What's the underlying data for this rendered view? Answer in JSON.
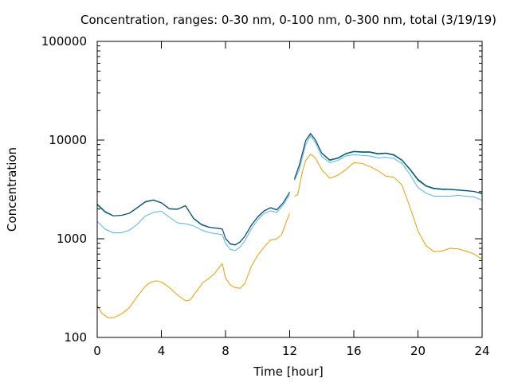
{
  "chart_data": {
    "type": "line",
    "title": "Concentration, ranges: 0-30 nm, 0-100 nm, 0-300 nm, total (3/19/19)",
    "xlabel": "Time [hour]",
    "ylabel": "Concentration",
    "xlim": [
      0,
      24
    ],
    "ylim": [
      100,
      100000
    ],
    "yscale": "log",
    "grid": false,
    "xticks": [
      0,
      4,
      8,
      12,
      16,
      20,
      24
    ],
    "xtick_labels": [
      "0",
      "4",
      "8",
      "12",
      "16",
      "20",
      "24"
    ],
    "yticks": [
      100,
      1000,
      10000,
      100000
    ],
    "ytick_labels": [
      "100",
      "1000",
      "10000",
      "100000"
    ],
    "series": [
      {
        "color": "#e69f00",
        "segments": [
          {
            "x": [
              0,
              0.3,
              0.7,
              1.0,
              1.5,
              2.0,
              2.5,
              3.0,
              3.3,
              3.7,
              4.0,
              4.5,
              5.0,
              5.5,
              5.8,
              6.2,
              6.6,
              7.0,
              7.3,
              7.6,
              7.8,
              8.0,
              8.3,
              8.6,
              8.9,
              9.2,
              9.6,
              10.0,
              10.4,
              10.8,
              11.2,
              11.5,
              11.8,
              12.0
            ],
            "y": [
              210,
              175,
              158,
              158,
              172,
              200,
              260,
              330,
              360,
              375,
              365,
              320,
              270,
              235,
              240,
              295,
              360,
              400,
              440,
              510,
              560,
              400,
              340,
              320,
              315,
              350,
              520,
              680,
              820,
              970,
              1000,
              1100,
              1500,
              1800
            ]
          },
          {
            "x": [
              12.3,
              12.5,
              12.8,
              13.0,
              13.3,
              13.6,
              14.0,
              14.5,
              15.0,
              15.5,
              16.0,
              16.5,
              17.0,
              17.5,
              18.0,
              18.5,
              19.0,
              19.5,
              20.0,
              20.5,
              21.0,
              21.5,
              22.0,
              22.5,
              23.0,
              23.5,
              24.0
            ],
            "y": [
              2700,
              2800,
              4800,
              6200,
              7200,
              6600,
              5000,
              4100,
              4400,
              5000,
              5900,
              5800,
              5400,
              4900,
              4300,
              4200,
              3500,
              2100,
              1200,
              850,
              740,
              750,
              800,
              790,
              750,
              700,
              620
            ]
          }
        ]
      },
      {
        "color": "#56b4e9",
        "segments": [
          {
            "x": [
              0,
              0.5,
              1.0,
              1.5,
              2.0,
              2.5,
              3.0,
              3.5,
              4.0,
              4.5,
              5.0,
              5.5,
              6.0,
              6.5,
              7.0,
              7.5,
              7.8,
              8.0,
              8.3,
              8.6,
              8.9,
              9.2,
              9.6,
              10.0,
              10.4,
              10.8,
              11.2,
              11.6,
              12.0
            ],
            "y": [
              1500,
              1250,
              1150,
              1150,
              1220,
              1400,
              1700,
              1850,
              1900,
              1650,
              1450,
              1420,
              1350,
              1230,
              1150,
              1120,
              1100,
              900,
              780,
              760,
              820,
              950,
              1250,
              1550,
              1800,
              1920,
              1850,
              2200,
              2800
            ]
          },
          {
            "x": [
              12.3,
              12.6,
              13.0,
              13.3,
              13.6,
              14.0,
              14.5,
              15.0,
              15.5,
              16.0,
              16.5,
              17.0,
              17.5,
              18.0,
              18.5,
              19.0,
              19.5,
              20.0,
              20.5,
              21.0,
              21.5,
              22.0,
              22.5,
              23.0,
              23.5,
              24.0
            ],
            "y": [
              3900,
              5000,
              9000,
              11000,
              9500,
              6800,
              5900,
              6200,
              6900,
              7100,
              7000,
              6900,
              6600,
              6700,
              6500,
              5800,
              4500,
              3300,
              2900,
              2700,
              2700,
              2700,
              2750,
              2700,
              2650,
              2450
            ]
          }
        ]
      },
      {
        "color": "#009e73",
        "segments": [
          {
            "x": [
              0,
              0.5,
              1.0,
              1.5,
              2.0,
              2.5,
              3.0,
              3.5,
              4.0,
              4.5,
              5.0,
              5.5,
              6.0,
              6.5,
              7.0,
              7.5,
              7.8,
              8.0,
              8.3,
              8.6,
              8.9,
              9.2,
              9.6,
              10.0,
              10.4,
              10.8,
              11.2,
              11.6,
              12.0
            ],
            "y": [
              2200,
              1850,
              1700,
              1720,
              1800,
              2050,
              2350,
              2450,
              2300,
              2000,
              1980,
              2150,
              1600,
              1380,
              1300,
              1270,
              1250,
              1000,
              880,
              860,
              920,
              1050,
              1350,
              1650,
              1900,
              2050,
              1950,
              2300,
              2950
            ]
          },
          {
            "x": [
              12.3,
              12.6,
              13.0,
              13.3,
              13.6,
              14.0,
              14.5,
              15.0,
              15.5,
              16.0,
              16.5,
              17.0,
              17.5,
              18.0,
              18.5,
              19.0,
              19.5,
              20.0,
              20.5,
              21.0,
              21.5,
              22.0,
              22.5,
              23.0,
              23.5,
              24.0
            ],
            "y": [
              4000,
              5500,
              9800,
              11500,
              10000,
              7300,
              6200,
              6500,
              7200,
              7600,
              7500,
              7500,
              7200,
              7300,
              7000,
              6200,
              5000,
              3900,
              3400,
              3200,
              3150,
              3150,
              3100,
              3050,
              3000,
              2850
            ]
          }
        ]
      },
      {
        "color": "#1a3a7a",
        "segments": [
          {
            "x": [
              0,
              0.5,
              1.0,
              1.5,
              2.0,
              2.5,
              3.0,
              3.5,
              4.0,
              4.5,
              5.0,
              5.5,
              6.0,
              6.5,
              7.0,
              7.5,
              7.8,
              8.0,
              8.3,
              8.6,
              8.9,
              9.2,
              9.6,
              10.0,
              10.4,
              10.8,
              11.2,
              11.6,
              12.0
            ],
            "y": [
              2250,
              1880,
              1710,
              1730,
              1820,
              2080,
              2380,
              2480,
              2320,
              2020,
              2000,
              2170,
              1620,
              1400,
              1310,
              1280,
              1260,
              1010,
              890,
              870,
              930,
              1060,
              1370,
              1670,
              1920,
              2070,
              1970,
              2320,
              2980
            ]
          },
          {
            "x": [
              12.3,
              12.6,
              13.0,
              13.3,
              13.6,
              14.0,
              14.5,
              15.0,
              15.5,
              16.0,
              16.5,
              17.0,
              17.5,
              18.0,
              18.5,
              19.0,
              19.5,
              20.0,
              20.5,
              21.0,
              21.5,
              22.0,
              22.5,
              23.0,
              23.5,
              24.0
            ],
            "y": [
              4050,
              5600,
              9900,
              11700,
              10100,
              7400,
              6300,
              6600,
              7300,
              7700,
              7600,
              7600,
              7300,
              7400,
              7100,
              6300,
              5100,
              4000,
              3450,
              3250,
              3200,
              3180,
              3130,
              3080,
              3020,
              2880
            ]
          }
        ]
      }
    ]
  }
}
